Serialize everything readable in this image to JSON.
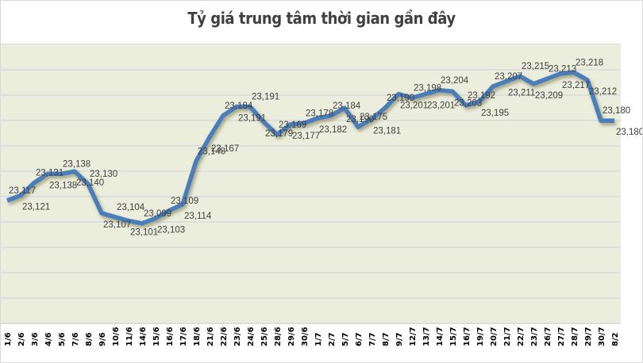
{
  "title": "Tỷ giá trung tâm thời gian gần đây",
  "colors": {
    "line": "#4a7ebb",
    "plot_background": "#ebeedd",
    "gridline": "#d9d9d9",
    "label_text": "#404040",
    "title_text": "#404040"
  },
  "chart_data": {
    "type": "line",
    "title": "Tỷ giá trung tâm thời gian gần đây",
    "xlabel": "",
    "ylabel": "",
    "grid": true,
    "legend": "none",
    "categories": [
      "1/6",
      "2/6",
      "3/6",
      "4/6",
      "5/6",
      "7/6",
      "8/6",
      "9/6",
      "10/6",
      "11/6",
      "14/6",
      "15/6",
      "16/6",
      "17/6",
      "18/6",
      "21/6",
      "22/6",
      "23/6",
      "24/6",
      "25/6",
      "28/6",
      "29/6",
      "30/6",
      "1/7",
      "2/7",
      "5/7",
      "6/7",
      "7/7",
      "8/7",
      "9/7",
      "12/7",
      "13/7",
      "14/7",
      "15/7",
      "16/7",
      "19/7",
      "20/7",
      "21/7",
      "22/7",
      "23/7",
      "26/7",
      "27/7",
      "28/7",
      "29/7",
      "30/7",
      "8/2"
    ],
    "series": [
      {
        "name": "Tỷ giá trung tâm",
        "values": [
          23117,
          23121,
          23131,
          23138,
          23138,
          23140,
          23130,
          23107,
          23104,
          23101,
          23099,
          23103,
          23109,
          23114,
          23148,
          23167,
          23184,
          23191,
          23191,
          23179,
          23169,
          23177,
          23178,
          23182,
          23184,
          23190,
          23175,
          23181,
          23190,
          23201,
          23198,
          23201,
          23204,
          23203,
          23192,
          23195,
          23207,
          23211,
          23215,
          23209,
          23213,
          23217,
          23218,
          23212,
          23180,
          23180
        ],
        "labels": [
          "23,117",
          "23,121",
          "23,131",
          "23,138",
          "23,138",
          "23,140",
          "23,130",
          "23,107",
          "23,104",
          "23,101",
          "23,099",
          "23,103",
          "23,109",
          "23,114",
          "23,148",
          "23,167",
          "23,184",
          "23,191",
          "23,191",
          "23,179",
          "23,169",
          "23,177",
          "23,178",
          "23,182",
          "23,184",
          "23,190",
          "23,175",
          "23,181",
          "23,190",
          "23,201",
          "23,198",
          "23,201",
          "23,204",
          "23,203",
          "23,192",
          "23,195",
          "23,207",
          "23,211",
          "23,215",
          "23,209",
          "23,213",
          "23,217",
          "23,218",
          "23,212",
          "23,180",
          "23,180"
        ]
      }
    ],
    "gridline_count": 11
  }
}
